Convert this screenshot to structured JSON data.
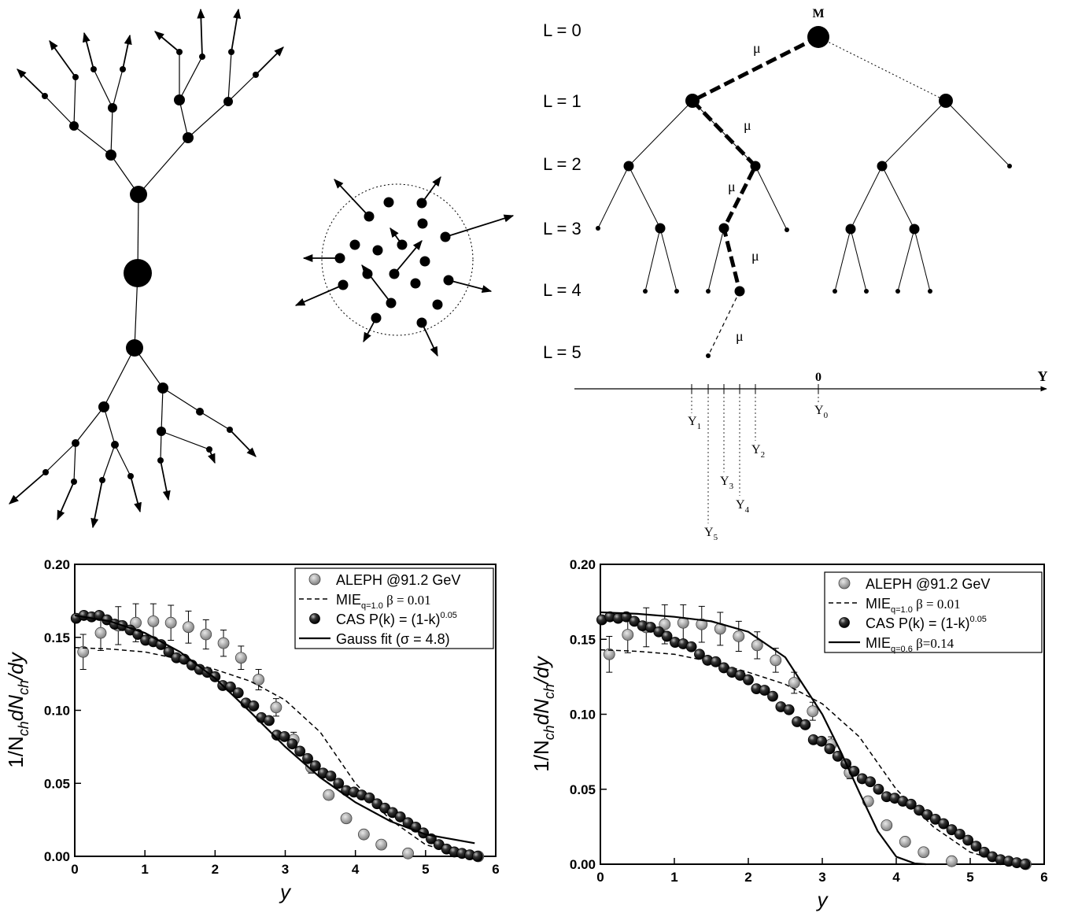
{
  "diagram": {
    "levels": [
      "L = 0",
      "L = 1",
      "L = 2",
      "L = 3",
      "L = 4",
      "L = 5"
    ],
    "root": "M",
    "edge_labels": [
      "μ",
      "μ",
      "μ",
      "μ",
      "μ"
    ],
    "axis_zero": "0",
    "axis_label": "Y",
    "marks": [
      {
        "base": "Y",
        "sub": "0"
      },
      {
        "base": "Y",
        "sub": "1"
      },
      {
        "base": "Y",
        "sub": "2"
      },
      {
        "base": "Y",
        "sub": "3"
      },
      {
        "base": "Y",
        "sub": "4"
      },
      {
        "base": "Y",
        "sub": "5"
      }
    ]
  },
  "chart_data": [
    {
      "type": "line",
      "xlabel": "y",
      "ylabel": [
        "1/N",
        "ch",
        "dN",
        "ch",
        "/dy"
      ],
      "xlim": [
        0,
        6
      ],
      "xticks": [
        0,
        1,
        2,
        3,
        4,
        5,
        6
      ],
      "ylim": [
        0,
        0.2
      ],
      "yticks": [
        {
          "value": 0,
          "label": "0.00"
        },
        {
          "value": 0.05,
          "label": "0.05"
        },
        {
          "value": 0.1,
          "label": "0.10"
        },
        {
          "value": 0.15,
          "label": "0.15"
        },
        {
          "value": 0.2,
          "label": "0.20"
        }
      ],
      "legend": "upper right",
      "series": [
        {
          "name": "ALEPH @91.2 GeV",
          "type": "scatter",
          "marker": "light",
          "color": "#a8a8a8",
          "x": [
            0.12,
            0.37,
            0.62,
            0.87,
            1.12,
            1.37,
            1.62,
            1.87,
            2.12,
            2.37,
            2.62,
            2.87,
            3.12,
            3.37,
            3.62,
            3.87,
            4.12,
            4.37,
            4.75,
            5.75
          ],
          "values": [
            0.14,
            0.153,
            0.158,
            0.16,
            0.161,
            0.16,
            0.157,
            0.152,
            0.146,
            0.136,
            0.121,
            0.102,
            0.08,
            0.061,
            0.042,
            0.026,
            0.015,
            0.008,
            0.002,
            0
          ],
          "errors": [
            0.012,
            0.012,
            0.013,
            0.013,
            0.012,
            0.012,
            0.011,
            0.01,
            0.009,
            0.008,
            0.007,
            0.006,
            0.005,
            0.004,
            0.003,
            0.002,
            0.001,
            0.001,
            0.001,
            0.001
          ]
        },
        {
          "name": "MIE",
          "name_sub": "q=1.0",
          "name_rest": " β = 0.01",
          "type": "line",
          "style": "dashed",
          "color": "#000000",
          "x": [
            0,
            0.5,
            1,
            1.5,
            2,
            2.5,
            3,
            3.5,
            4,
            4.5,
            5,
            5.5,
            5.7
          ],
          "values": [
            0.143,
            0.142,
            0.14,
            0.135,
            0.128,
            0.12,
            0.107,
            0.085,
            0.05,
            0.025,
            0.008,
            0.001,
            0
          ]
        },
        {
          "name": "CAS P(k) = (1-k)",
          "name_sup": "0.05",
          "type": "scatter",
          "marker": "dark",
          "color": "#222222",
          "x": [
            0.02,
            0.13,
            0.24,
            0.35,
            0.46,
            0.57,
            0.68,
            0.79,
            0.9,
            1.01,
            1.12,
            1.23,
            1.34,
            1.45,
            1.56,
            1.67,
            1.78,
            1.89,
            2.0,
            2.11,
            2.22,
            2.33,
            2.44,
            2.55,
            2.66,
            2.77,
            2.88,
            2.99,
            3.1,
            3.21,
            3.32,
            3.43,
            3.54,
            3.65,
            3.76,
            3.87,
            3.98,
            4.09,
            4.2,
            4.31,
            4.42,
            4.53,
            4.64,
            4.75,
            4.86,
            4.97,
            5.08,
            5.19,
            5.3,
            5.41,
            5.52,
            5.63,
            5.74
          ],
          "values": [
            0.163,
            0.165,
            0.164,
            0.165,
            0.162,
            0.159,
            0.158,
            0.155,
            0.152,
            0.148,
            0.147,
            0.145,
            0.14,
            0.136,
            0.135,
            0.131,
            0.128,
            0.126,
            0.123,
            0.117,
            0.116,
            0.112,
            0.105,
            0.103,
            0.095,
            0.093,
            0.083,
            0.082,
            0.077,
            0.072,
            0.067,
            0.062,
            0.057,
            0.055,
            0.05,
            0.045,
            0.044,
            0.042,
            0.04,
            0.036,
            0.033,
            0.03,
            0.027,
            0.023,
            0.02,
            0.016,
            0.012,
            0.008,
            0.005,
            0.003,
            0.002,
            0.001,
            0
          ]
        },
        {
          "name": "Gauss fit (σ = 4.8)",
          "type": "line",
          "style": "solid",
          "color": "#000000",
          "x": [
            0,
            0.5,
            1,
            1.5,
            2,
            2.5,
            3,
            3.5,
            4,
            4.5,
            5,
            5.7
          ],
          "values": [
            0.165,
            0.161,
            0.153,
            0.14,
            0.122,
            0.099,
            0.075,
            0.054,
            0.037,
            0.024,
            0.015,
            0.009
          ]
        }
      ]
    },
    {
      "type": "line",
      "xlabel": "y",
      "ylabel": [
        "1/N",
        "ch",
        "dN",
        "ch",
        "/dy"
      ],
      "xlim": [
        0,
        6
      ],
      "xticks": [
        0,
        1,
        2,
        3,
        4,
        5,
        6
      ],
      "ylim": [
        0,
        0.2
      ],
      "yticks": [
        {
          "value": 0,
          "label": "0.00"
        },
        {
          "value": 0.05,
          "label": "0.05"
        },
        {
          "value": 0.1,
          "label": "0.10"
        },
        {
          "value": 0.15,
          "label": "0.15"
        },
        {
          "value": 0.2,
          "label": "0.20"
        }
      ],
      "legend": "upper right",
      "series": [
        {
          "name": "ALEPH @91.2 GeV",
          "type": "scatter",
          "marker": "light",
          "color": "#a8a8a8",
          "x": [
            0.12,
            0.37,
            0.62,
            0.87,
            1.12,
            1.37,
            1.62,
            1.87,
            2.12,
            2.37,
            2.62,
            2.87,
            3.12,
            3.37,
            3.62,
            3.87,
            4.12,
            4.37,
            4.75,
            5.75
          ],
          "values": [
            0.14,
            0.153,
            0.158,
            0.16,
            0.161,
            0.16,
            0.157,
            0.152,
            0.146,
            0.136,
            0.121,
            0.102,
            0.08,
            0.061,
            0.042,
            0.026,
            0.015,
            0.008,
            0.002,
            0
          ],
          "errors": [
            0.012,
            0.012,
            0.013,
            0.013,
            0.012,
            0.012,
            0.011,
            0.01,
            0.009,
            0.008,
            0.007,
            0.006,
            0.005,
            0.004,
            0.003,
            0.002,
            0.001,
            0.001,
            0.001,
            0.001
          ]
        },
        {
          "name": "MIE",
          "name_sub": "q=1.0",
          "name_rest": " β = 0.01",
          "type": "line",
          "style": "dashed",
          "color": "#000000",
          "x": [
            0,
            0.5,
            1,
            1.5,
            2,
            2.5,
            3,
            3.5,
            4,
            4.5,
            5,
            5.5,
            5.7
          ],
          "values": [
            0.143,
            0.142,
            0.14,
            0.135,
            0.128,
            0.12,
            0.107,
            0.085,
            0.05,
            0.025,
            0.008,
            0.001,
            0
          ]
        },
        {
          "name": "CAS P(k) = (1-k)",
          "name_sup": "0.05",
          "type": "scatter",
          "marker": "dark",
          "color": "#222222",
          "x": [
            0.02,
            0.13,
            0.24,
            0.35,
            0.46,
            0.57,
            0.68,
            0.79,
            0.9,
            1.01,
            1.12,
            1.23,
            1.34,
            1.45,
            1.56,
            1.67,
            1.78,
            1.89,
            2.0,
            2.11,
            2.22,
            2.33,
            2.44,
            2.55,
            2.66,
            2.77,
            2.88,
            2.99,
            3.1,
            3.21,
            3.32,
            3.43,
            3.54,
            3.65,
            3.76,
            3.87,
            3.98,
            4.09,
            4.2,
            4.31,
            4.42,
            4.53,
            4.64,
            4.75,
            4.86,
            4.97,
            5.08,
            5.19,
            5.3,
            5.41,
            5.52,
            5.63,
            5.74
          ],
          "values": [
            0.163,
            0.165,
            0.164,
            0.165,
            0.162,
            0.159,
            0.158,
            0.155,
            0.152,
            0.148,
            0.147,
            0.145,
            0.14,
            0.136,
            0.135,
            0.131,
            0.128,
            0.126,
            0.123,
            0.117,
            0.116,
            0.112,
            0.105,
            0.103,
            0.095,
            0.093,
            0.083,
            0.082,
            0.077,
            0.072,
            0.067,
            0.062,
            0.057,
            0.055,
            0.05,
            0.045,
            0.044,
            0.042,
            0.04,
            0.036,
            0.033,
            0.03,
            0.027,
            0.023,
            0.02,
            0.016,
            0.012,
            0.008,
            0.005,
            0.003,
            0.002,
            0.001,
            0
          ]
        },
        {
          "name": "MIE",
          "name_sub": "q=0.6",
          "name_rest": " β=0.14",
          "type": "line",
          "style": "solid",
          "color": "#000000",
          "x": [
            0,
            0.5,
            1,
            1.5,
            2,
            2.5,
            3,
            3.25,
            3.5,
            3.75,
            4,
            4.25,
            4.4
          ],
          "values": [
            0.168,
            0.167,
            0.165,
            0.162,
            0.155,
            0.138,
            0.1,
            0.075,
            0.048,
            0.022,
            0.005,
            0.0005,
            0
          ]
        }
      ]
    }
  ]
}
